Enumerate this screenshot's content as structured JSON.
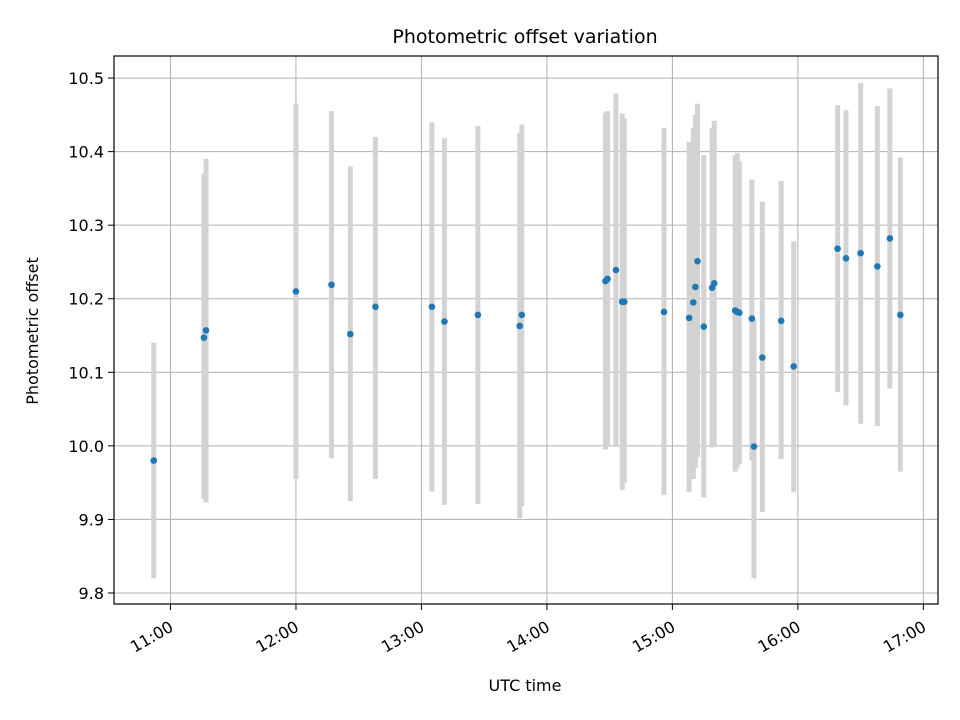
{
  "chart_data": {
    "type": "scatter",
    "title": "Photometric offset variation",
    "xlabel": "UTC time",
    "ylabel": "Photometric offset",
    "x_tick_labels": [
      "11:00",
      "12:00",
      "13:00",
      "14:00",
      "15:00",
      "16:00",
      "17:00"
    ],
    "y_ticks": [
      9.8,
      9.9,
      10.0,
      10.1,
      10.2,
      10.3,
      10.4,
      10.5
    ],
    "y_tick_labels": [
      "9.8",
      "9.9",
      "10.0",
      "10.1",
      "10.2",
      "10.3",
      "10.4",
      "10.5"
    ],
    "xlim": [
      "10:33",
      "17:07"
    ],
    "ylim": [
      9.785,
      10.53
    ],
    "grid": true,
    "colors": {
      "point": "#1f77b4",
      "errorbar": "#d3d3d3",
      "grid": "#b0b0b0"
    },
    "points": [
      {
        "t": "10:52",
        "y": 9.98,
        "low": 9.82,
        "high": 10.14
      },
      {
        "t": "11:16",
        "y": 10.147,
        "low": 9.928,
        "high": 10.37
      },
      {
        "t": "11:17",
        "y": 10.157,
        "low": 9.923,
        "high": 10.39
      },
      {
        "t": "12:00",
        "y": 10.21,
        "low": 9.955,
        "high": 10.465
      },
      {
        "t": "12:17",
        "y": 10.219,
        "low": 9.983,
        "high": 10.455
      },
      {
        "t": "12:26",
        "y": 10.152,
        "low": 9.925,
        "high": 10.38
      },
      {
        "t": "12:38",
        "y": 10.189,
        "low": 9.955,
        "high": 10.42
      },
      {
        "t": "13:05",
        "y": 10.189,
        "low": 9.938,
        "high": 10.44
      },
      {
        "t": "13:11",
        "y": 10.169,
        "low": 9.92,
        "high": 10.418
      },
      {
        "t": "13:27",
        "y": 10.178,
        "low": 9.921,
        "high": 10.435
      },
      {
        "t": "13:47",
        "y": 10.163,
        "low": 9.902,
        "high": 10.425
      },
      {
        "t": "13:48",
        "y": 10.178,
        "low": 9.918,
        "high": 10.437
      },
      {
        "t": "14:28",
        "y": 10.224,
        "low": 9.995,
        "high": 10.453
      },
      {
        "t": "14:29",
        "y": 10.227,
        "low": 10.0,
        "high": 10.455
      },
      {
        "t": "14:33",
        "y": 10.239,
        "low": 10.0,
        "high": 10.479
      },
      {
        "t": "14:36",
        "y": 10.196,
        "low": 9.94,
        "high": 10.452
      },
      {
        "t": "14:37",
        "y": 10.196,
        "low": 9.95,
        "high": 10.445
      },
      {
        "t": "14:56",
        "y": 10.182,
        "low": 9.933,
        "high": 10.432
      },
      {
        "t": "15:08",
        "y": 10.174,
        "low": 9.937,
        "high": 10.413
      },
      {
        "t": "15:10",
        "y": 10.195,
        "low": 9.955,
        "high": 10.432
      },
      {
        "t": "15:11",
        "y": 10.216,
        "low": 9.97,
        "high": 10.45
      },
      {
        "t": "15:12",
        "y": 10.251,
        "low": 9.985,
        "high": 10.465
      },
      {
        "t": "15:15",
        "y": 10.162,
        "low": 9.93,
        "high": 10.395
      },
      {
        "t": "15:19",
        "y": 10.215,
        "low": 9.998,
        "high": 10.432
      },
      {
        "t": "15:20",
        "y": 10.221,
        "low": 10.0,
        "high": 10.442
      },
      {
        "t": "15:30",
        "y": 10.184,
        "low": 9.965,
        "high": 10.395
      },
      {
        "t": "15:31",
        "y": 10.182,
        "low": 9.97,
        "high": 10.398
      },
      {
        "t": "15:32",
        "y": 10.181,
        "low": 9.975,
        "high": 10.387
      },
      {
        "t": "15:38",
        "y": 10.173,
        "low": 9.98,
        "high": 10.362
      },
      {
        "t": "15:39",
        "y": 9.999,
        "low": 9.82,
        "high": 10.172
      },
      {
        "t": "15:43",
        "y": 10.12,
        "low": 9.91,
        "high": 10.332
      },
      {
        "t": "15:52",
        "y": 10.17,
        "low": 9.982,
        "high": 10.36
      },
      {
        "t": "15:58",
        "y": 10.108,
        "low": 9.937,
        "high": 10.278
      },
      {
        "t": "16:19",
        "y": 10.268,
        "low": 10.073,
        "high": 10.463
      },
      {
        "t": "16:23",
        "y": 10.255,
        "low": 10.055,
        "high": 10.456
      },
      {
        "t": "16:30",
        "y": 10.262,
        "low": 10.03,
        "high": 10.493
      },
      {
        "t": "16:38",
        "y": 10.244,
        "low": 10.027,
        "high": 10.462
      },
      {
        "t": "16:44",
        "y": 10.282,
        "low": 10.078,
        "high": 10.486
      },
      {
        "t": "16:49",
        "y": 10.178,
        "low": 9.965,
        "high": 10.392
      }
    ]
  }
}
